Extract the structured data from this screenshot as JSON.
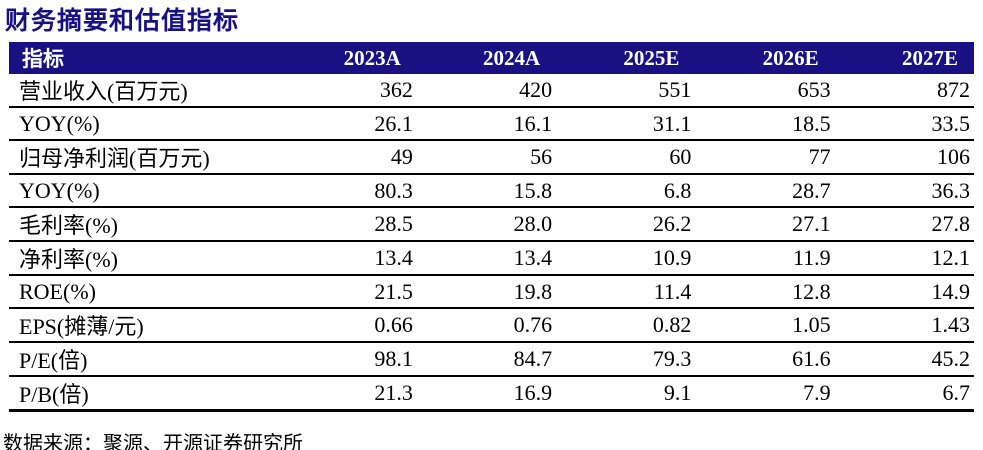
{
  "title": "财务摘要和估值指标",
  "colors": {
    "navy": "#191183",
    "rule": "#000000"
  },
  "table": {
    "header": {
      "label": "指标",
      "years": [
        "2023A",
        "2024A",
        "2025E",
        "2026E",
        "2027E"
      ]
    },
    "rows": [
      {
        "label": "营业收入(百万元)",
        "values": [
          "362",
          "420",
          "551",
          "653",
          "872"
        ]
      },
      {
        "label": "YOY(%)",
        "values": [
          "26.1",
          "16.1",
          "31.1",
          "18.5",
          "33.5"
        ]
      },
      {
        "label": "归母净利润(百万元)",
        "values": [
          "49",
          "56",
          "60",
          "77",
          "106"
        ]
      },
      {
        "label": "YOY(%)",
        "values": [
          "80.3",
          "15.8",
          "6.8",
          "28.7",
          "36.3"
        ]
      },
      {
        "label": "毛利率(%)",
        "values": [
          "28.5",
          "28.0",
          "26.2",
          "27.1",
          "27.8"
        ]
      },
      {
        "label": "净利率(%)",
        "values": [
          "13.4",
          "13.4",
          "10.9",
          "11.9",
          "12.1"
        ]
      },
      {
        "label": "ROE(%)",
        "values": [
          "21.5",
          "19.8",
          "11.4",
          "12.8",
          "14.9"
        ]
      },
      {
        "label": "EPS(摊薄/元)",
        "values": [
          "0.66",
          "0.76",
          "0.82",
          "1.05",
          "1.43"
        ]
      },
      {
        "label": "P/E(倍)",
        "values": [
          "98.1",
          "84.7",
          "79.3",
          "61.6",
          "45.2"
        ]
      },
      {
        "label": "P/B(倍)",
        "values": [
          "21.3",
          "16.9",
          "9.1",
          "7.9",
          "6.7"
        ]
      }
    ]
  },
  "footer": {
    "source": "数据来源：聚源、开源证券研究所"
  }
}
